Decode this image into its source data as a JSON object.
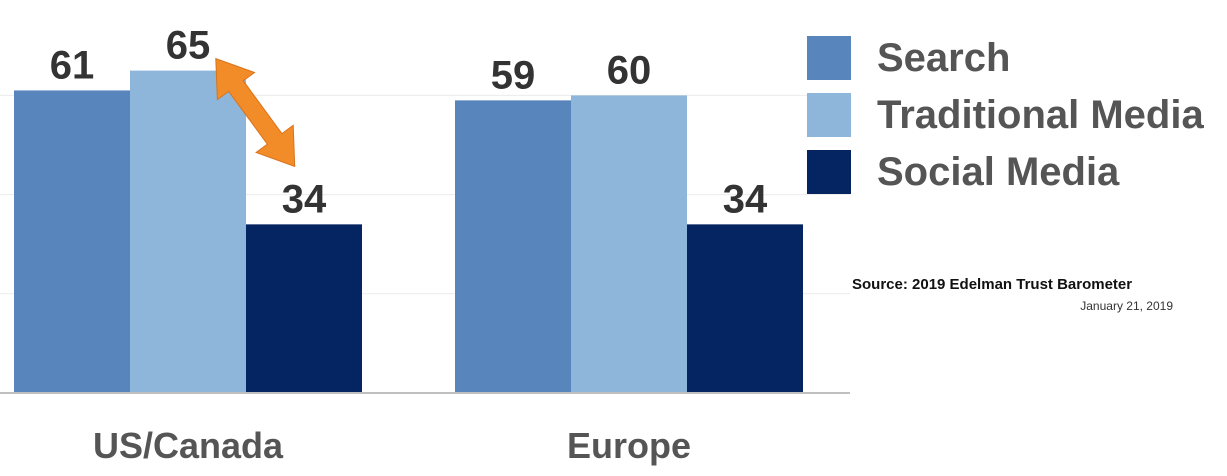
{
  "chart_data": {
    "type": "bar",
    "categories": [
      "US/Canada",
      "Europe"
    ],
    "series": [
      {
        "name": "Search",
        "values": [
          61,
          59
        ],
        "color": "#5885BC"
      },
      {
        "name": "Traditional Media",
        "values": [
          65,
          60
        ],
        "color": "#8EB6DA"
      },
      {
        "name": "Social Media",
        "values": [
          34,
          34
        ],
        "color": "#052462"
      }
    ],
    "ylim": [
      0,
      100
    ],
    "grid": true,
    "legend_position": "right",
    "annotation": {
      "type": "double-arrow",
      "color": "#F28C28",
      "from_series": "Traditional Media",
      "to_series": "Social Media",
      "category": "US/Canada"
    }
  },
  "legend": {
    "items": [
      {
        "label": "Search",
        "color": "#5885BC"
      },
      {
        "label": "Traditional Media",
        "color": "#8EB6DA"
      },
      {
        "label": "Social Media",
        "color": "#052462"
      }
    ]
  },
  "source": {
    "text": "Source: 2019 Edelman Trust Barometer",
    "date": "January 21, 2019"
  }
}
